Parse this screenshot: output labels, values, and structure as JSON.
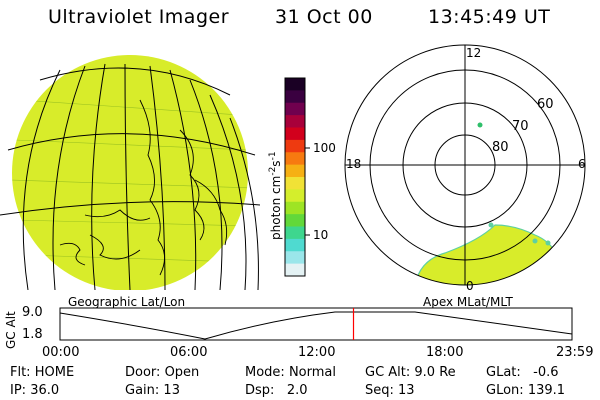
{
  "header": {
    "instrument": "Ultraviolet Imager",
    "date": "31 Oct 00",
    "time": "13:45:49 UT"
  },
  "geo_panel": {
    "label": "Geographic Lat/Lon",
    "image_color": "#d8ec2a"
  },
  "colorbar": {
    "axis_label": "photon cm",
    "exp1": "-2",
    "mid": "s",
    "exp2": "-1",
    "ticks": [
      "100",
      "10"
    ],
    "colors": [
      "#1a0024",
      "#3a0040",
      "#70004e",
      "#a8003a",
      "#d2001c",
      "#ee3a10",
      "#f77a10",
      "#f6b014",
      "#f1e236",
      "#d4ee2c",
      "#9ee424",
      "#62d83a",
      "#3ed68e",
      "#4fdad0",
      "#9ae6ea",
      "#e4f2f4"
    ]
  },
  "polar_panel": {
    "label": "Apex  MLat/MLT",
    "mlt_labels": {
      "top": "12",
      "left": "18",
      "right": "6",
      "bottom": "0"
    },
    "lat_labels": [
      "60",
      "70",
      "80"
    ],
    "image_color": "#d8ec2a"
  },
  "altitude_strip": {
    "y_axis_label": "GC Alt",
    "y_ticks": [
      "9.0",
      "1.8"
    ],
    "x_ticks": [
      "00:00",
      "06:00",
      "12:00",
      "18:00",
      "23:59"
    ],
    "current_time": "13:45",
    "marker_color": "#ff0000"
  },
  "status": {
    "flt": {
      "label": "Flt:",
      "value": "HOME"
    },
    "ip": {
      "label": "IP:",
      "value": "36.0"
    },
    "door": {
      "label": "Door:",
      "value": "Open"
    },
    "gain": {
      "label": "Gain:",
      "value": "13"
    },
    "mode": {
      "label": "Mode:",
      "value": "Normal"
    },
    "dsp": {
      "label": "Dsp:",
      "value": "2.0"
    },
    "gcalt": {
      "label": "GC Alt:",
      "value": "9.0 Re"
    },
    "seq": {
      "label": "Seq:",
      "value": "13"
    },
    "glat": {
      "label": "GLat:",
      "value": "-0.6"
    },
    "glon": {
      "label": "GLon:",
      "value": "139.1"
    }
  }
}
